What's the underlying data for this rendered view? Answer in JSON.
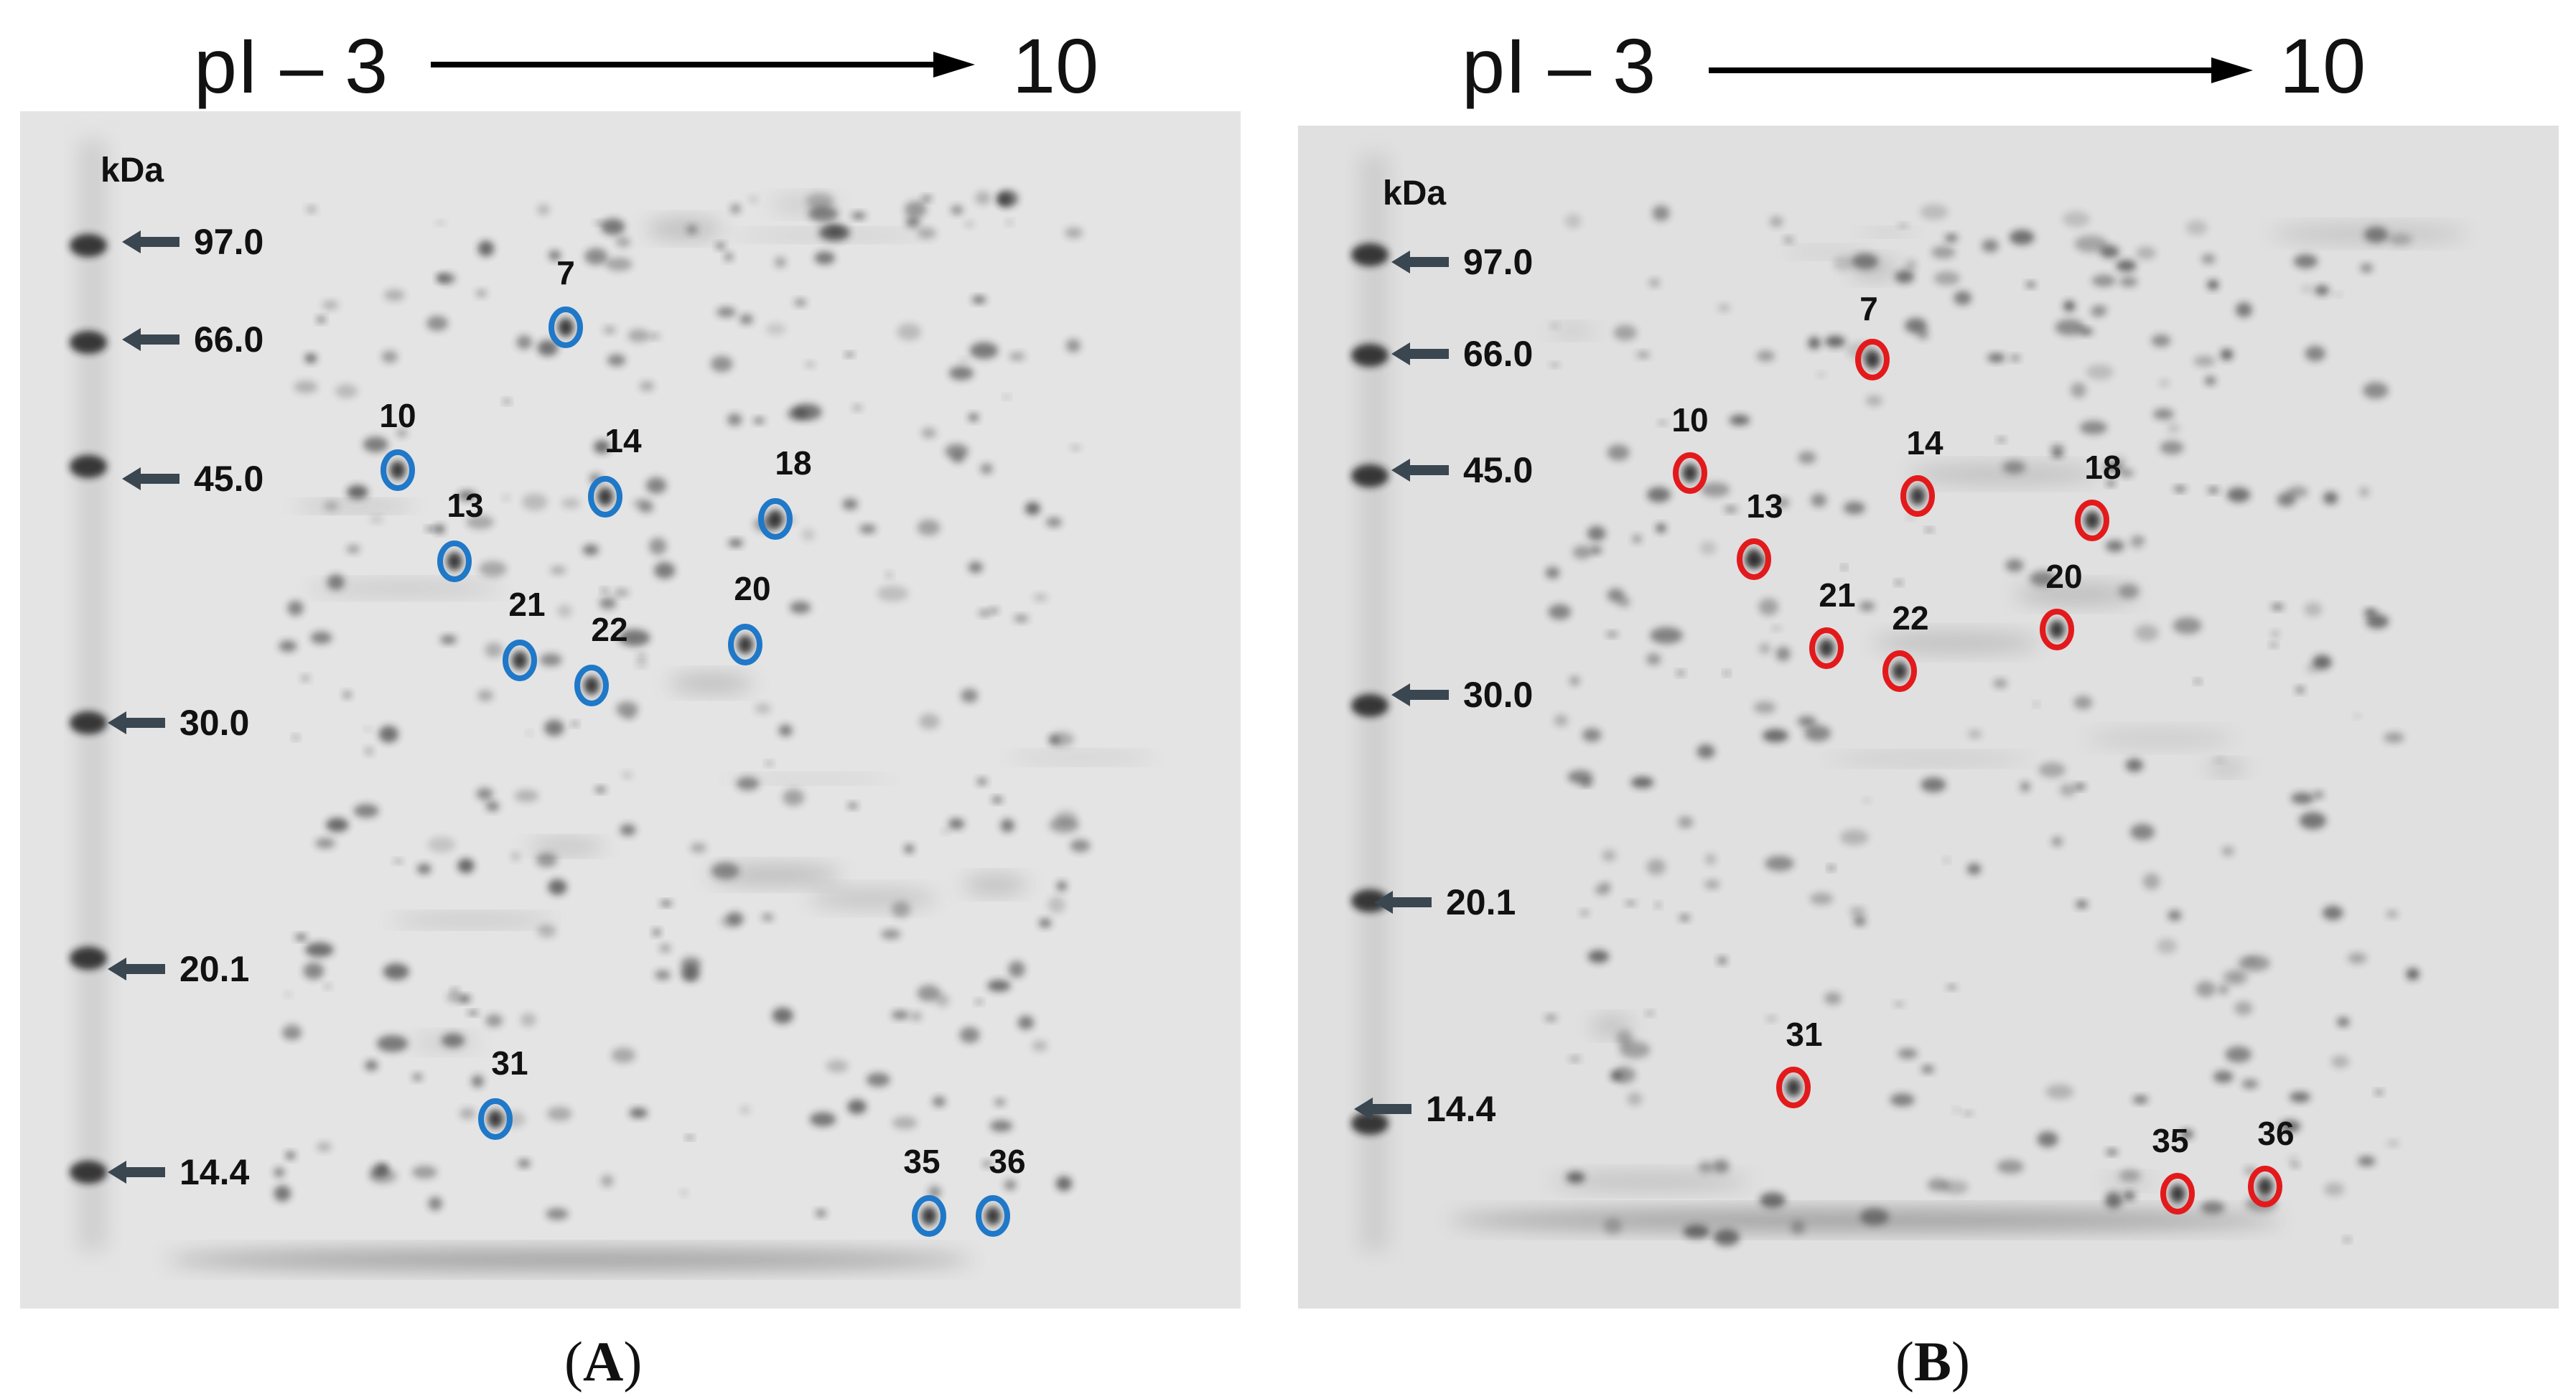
{
  "header": {
    "left": {
      "pi_label": "pI – 3",
      "pi_end": "10"
    },
    "right": {
      "pi_label": "pI – 3",
      "pi_end": "10"
    }
  },
  "panels": [
    {
      "id": "A",
      "label_open": "(",
      "label": "A",
      "label_close": ")",
      "unit": "kDa",
      "circle_color": "#1f78c8",
      "markers": [
        "97.0",
        "66.0",
        "45.0",
        "30.0",
        "20.1",
        "14.4"
      ],
      "spots": [
        "7",
        "10",
        "14",
        "18",
        "13",
        "21",
        "22",
        "20",
        "31",
        "35",
        "36"
      ]
    },
    {
      "id": "B",
      "label_open": "(",
      "label": "B",
      "label_close": ")",
      "unit": "kDa",
      "circle_color": "#e31a1c",
      "markers": [
        "97.0",
        "66.0",
        "45.0",
        "30.0",
        "20.1",
        "14.4"
      ],
      "spots": [
        "7",
        "10",
        "14",
        "18",
        "13",
        "21",
        "22",
        "20",
        "31",
        "35",
        "36"
      ]
    }
  ],
  "colors": {
    "gel_background": "#e6e6e6",
    "arrow": "#3a4650",
    "text": "#111111"
  }
}
